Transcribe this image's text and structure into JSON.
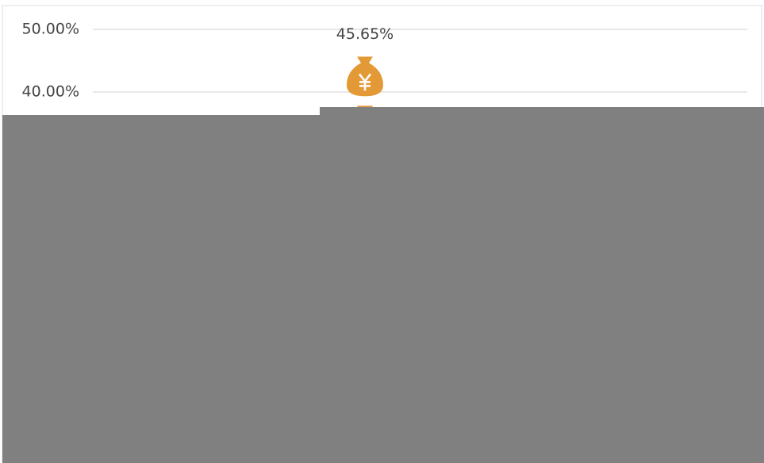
{
  "chart_data": {
    "type": "bar",
    "categories": [
      null
    ],
    "values": [
      45.65
    ],
    "value_labels": [
      "45.65%"
    ],
    "color": "#e39a36",
    "ylim": [
      0,
      50
    ],
    "yticks": [
      {
        "value": 40,
        "label": "40.00%"
      },
      {
        "value": 50,
        "label": "50.00%"
      }
    ],
    "grid": true
  }
}
